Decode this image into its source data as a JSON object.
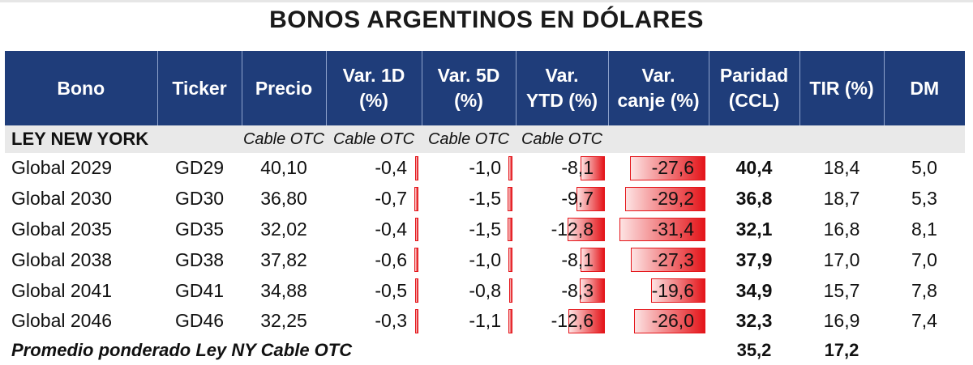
{
  "title": "BONOS ARGENTINOS EN DÓLARES",
  "columns": {
    "bono": "Bono",
    "ticker": "Ticker",
    "precio": "Precio",
    "var1d_l1": "Var. 1D",
    "var1d_l2": "(%)",
    "var5d_l1": "Var. 5D",
    "var5d_l2": "(%)",
    "varytd_l1": "Var.",
    "varytd_l2": "YTD (%)",
    "varcanje_l1": "Var.",
    "varcanje_l2": "canje (%)",
    "paridad_l1": "Paridad",
    "paridad_l2": "(CCL)",
    "tir": "TIR (%)",
    "dm": "DM"
  },
  "section": {
    "label": "LEY NEW YORK",
    "precio_src": "Cable OTC",
    "var1d_src": "Cable OTC",
    "var5d_src": "Cable OTC",
    "varytd_src": "Cable OTC"
  },
  "bar_color": "#e4151a",
  "header_color": "#1f3d7a",
  "rows": [
    {
      "bono": "Global 2029",
      "ticker": "GD29",
      "precio": "40,10",
      "var1d": "-0,4",
      "var5d": "-1,0",
      "varytd": "-8,1",
      "varcanje": "-27,6",
      "paridad": "40,4",
      "tir": "18,4",
      "dm": "5,0"
    },
    {
      "bono": "Global 2030",
      "ticker": "GD30",
      "precio": "36,80",
      "var1d": "-0,7",
      "var5d": "-1,5",
      "varytd": "-9,7",
      "varcanje": "-29,2",
      "paridad": "36,8",
      "tir": "18,7",
      "dm": "5,3"
    },
    {
      "bono": "Global 2035",
      "ticker": "GD35",
      "precio": "32,02",
      "var1d": "-0,4",
      "var5d": "-1,5",
      "varytd": "-12,8",
      "varcanje": "-31,4",
      "paridad": "32,1",
      "tir": "16,8",
      "dm": "8,1"
    },
    {
      "bono": "Global 2038",
      "ticker": "GD38",
      "precio": "37,82",
      "var1d": "-0,6",
      "var5d": "-1,0",
      "varytd": "-8,1",
      "varcanje": "-27,3",
      "paridad": "37,9",
      "tir": "17,0",
      "dm": "7,0"
    },
    {
      "bono": "Global 2041",
      "ticker": "GD41",
      "precio": "34,88",
      "var1d": "-0,5",
      "var5d": "-0,8",
      "varytd": "-8,3",
      "varcanje": "-19,6",
      "paridad": "34,9",
      "tir": "15,7",
      "dm": "7,8"
    },
    {
      "bono": "Global 2046",
      "ticker": "GD46",
      "precio": "32,25",
      "var1d": "-0,3",
      "var5d": "-1,1",
      "varytd": "-12,6",
      "varcanje": "-26,0",
      "paridad": "32,3",
      "tir": "16,9",
      "dm": "7,4"
    }
  ],
  "footer": {
    "label": "Promedio ponderado Ley NY Cable OTC",
    "paridad": "35,2",
    "tir": "17,2"
  }
}
